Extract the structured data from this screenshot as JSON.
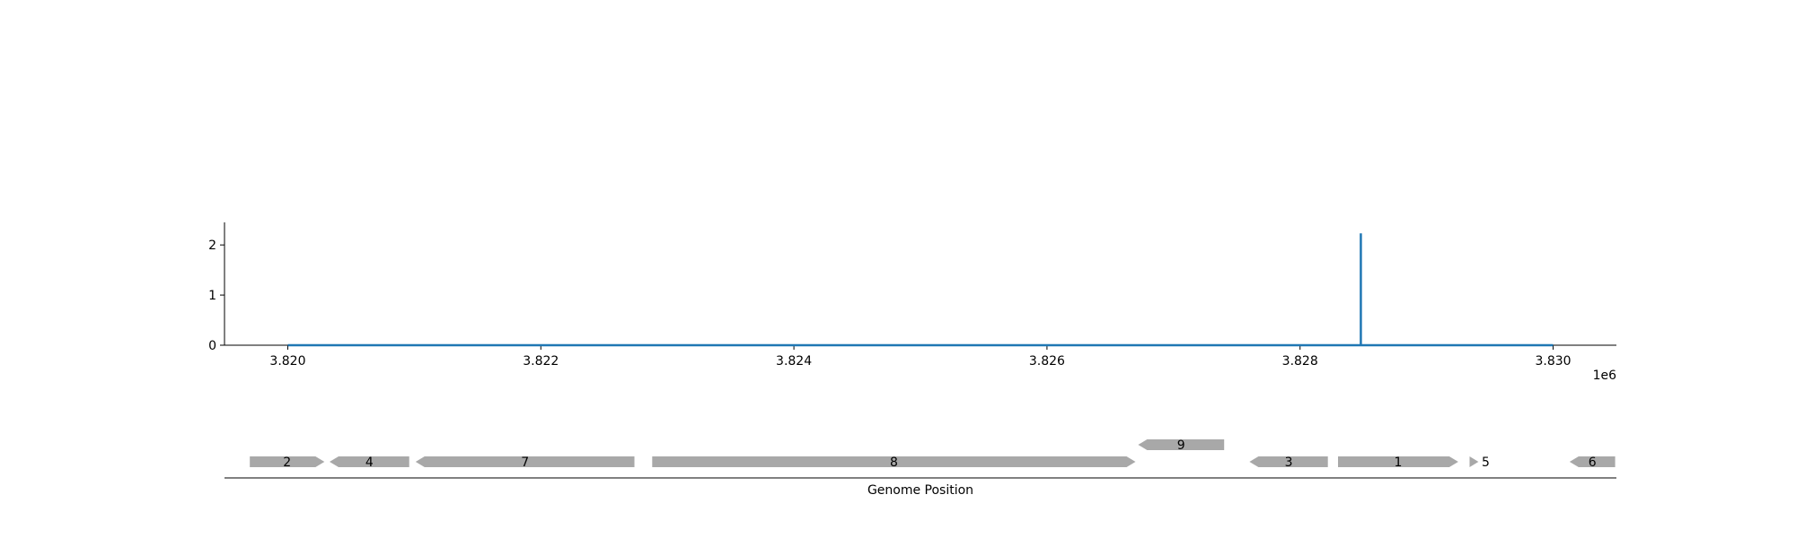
{
  "chart_data": [
    {
      "type": "line",
      "x_offset_label": "1e6",
      "xlim": [
        3819500,
        3830500
      ],
      "ylim": [
        0,
        2.45
      ],
      "xticks": [
        3820000,
        3822000,
        3824000,
        3826000,
        3828000,
        3830000
      ],
      "xtick_labels": [
        "3.820",
        "3.822",
        "3.824",
        "3.826",
        "3.828",
        "3.830"
      ],
      "yticks": [
        0,
        1,
        2
      ],
      "ytick_labels": [
        "0",
        "1",
        "2"
      ],
      "series": [
        {
          "color": "#1f77b4",
          "x": [
            3820000,
            3828480,
            3828480,
            3828480,
            3830000
          ],
          "y": [
            0,
            0,
            2.23,
            0,
            0
          ]
        }
      ],
      "grid": false
    },
    {
      "type": "gene_map",
      "xlabel": "Genome Position",
      "gene_color": "#a8a8a8",
      "genes": [
        {
          "label": "2",
          "start": 3819700,
          "end": 3820290,
          "strand": "+",
          "row": 0
        },
        {
          "label": "4",
          "start": 3820330,
          "end": 3820960,
          "strand": "-",
          "row": 0
        },
        {
          "label": "7",
          "start": 3821010,
          "end": 3822740,
          "strand": "-",
          "row": 0
        },
        {
          "label": "8",
          "start": 3822880,
          "end": 3826700,
          "strand": "+",
          "row": 0
        },
        {
          "label": "9",
          "start": 3826720,
          "end": 3827400,
          "strand": "-",
          "row": 1
        },
        {
          "label": "3",
          "start": 3827600,
          "end": 3828220,
          "strand": "-",
          "row": 0
        },
        {
          "label": "1",
          "start": 3828300,
          "end": 3829250,
          "strand": "+",
          "row": 0
        },
        {
          "label": "5",
          "start": 3829340,
          "end": 3829410,
          "strand": "+",
          "row": 0
        },
        {
          "label": "6",
          "start": 3830130,
          "end": 3830490,
          "strand": "-",
          "row": 0
        }
      ]
    }
  ]
}
